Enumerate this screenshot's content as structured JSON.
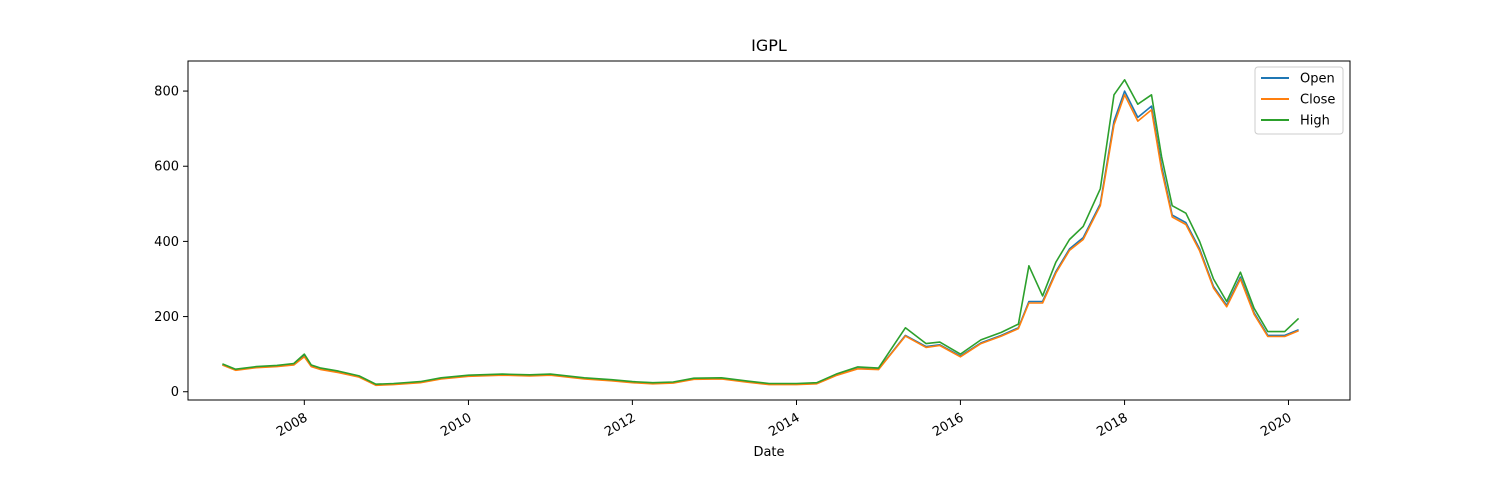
{
  "chart_data": {
    "type": "line",
    "title": "IGPL",
    "xlabel": "Date",
    "ylabel": "",
    "x_axis": {
      "type": "date",
      "range": [
        "2006-08-01",
        "2020-10-01"
      ],
      "ticks": [
        "2008-01-01",
        "2010-01-01",
        "2012-01-01",
        "2014-01-01",
        "2016-01-01",
        "2018-01-01",
        "2020-01-01"
      ],
      "tick_labels": [
        "2008",
        "2010",
        "2012",
        "2014",
        "2016",
        "2018",
        "2020"
      ]
    },
    "y_axis": {
      "range": [
        -22,
        880
      ],
      "ticks": [
        0,
        200,
        400,
        600,
        800
      ],
      "tick_labels": [
        "0",
        "200",
        "400",
        "600",
        "800"
      ]
    },
    "grid": false,
    "legend": {
      "position": "top-right"
    },
    "x": [
      "2007-01-01",
      "2007-03-01",
      "2007-06-01",
      "2007-09-01",
      "2007-11-15",
      "2008-01-01",
      "2008-02-01",
      "2008-03-15",
      "2008-06-01",
      "2008-09-01",
      "2008-11-15",
      "2009-02-01",
      "2009-06-01",
      "2009-09-01",
      "2010-01-01",
      "2010-06-01",
      "2010-10-01",
      "2011-01-01",
      "2011-06-01",
      "2011-10-01",
      "2012-01-01",
      "2012-04-01",
      "2012-07-01",
      "2012-10-01",
      "2013-02-01",
      "2013-06-01",
      "2013-09-01",
      "2014-01-01",
      "2014-04-01",
      "2014-07-01",
      "2014-10-01",
      "2015-01-01",
      "2015-05-01",
      "2015-08-01",
      "2015-10-01",
      "2016-01-01",
      "2016-04-01",
      "2016-07-01",
      "2016-09-15",
      "2016-11-01",
      "2017-01-01",
      "2017-03-01",
      "2017-05-01",
      "2017-07-01",
      "2017-09-15",
      "2017-11-15",
      "2018-01-01",
      "2018-03-01",
      "2018-05-01",
      "2018-06-15",
      "2018-08-01",
      "2018-10-01",
      "2018-12-01",
      "2019-02-01",
      "2019-04-01",
      "2019-06-01",
      "2019-08-01",
      "2019-10-01",
      "2019-12-15",
      "2020-02-15"
    ],
    "series": [
      {
        "name": "Open",
        "color": "#1f77b4",
        "values": [
          72,
          58,
          65,
          68,
          72,
          95,
          68,
          60,
          52,
          40,
          18,
          20,
          25,
          35,
          42,
          45,
          43,
          45,
          35,
          30,
          25,
          22,
          24,
          34,
          35,
          26,
          20,
          20,
          22,
          45,
          62,
          60,
          150,
          120,
          125,
          95,
          130,
          150,
          170,
          240,
          240,
          320,
          380,
          410,
          500,
          720,
          800,
          730,
          760,
          600,
          470,
          450,
          380,
          280,
          230,
          305,
          210,
          150,
          150,
          165
        ]
      },
      {
        "name": "Close",
        "color": "#ff7f0e",
        "values": [
          71,
          57,
          64,
          67,
          71,
          93,
          67,
          59,
          51,
          39,
          17,
          19,
          24,
          34,
          41,
          44,
          42,
          44,
          34,
          29,
          24,
          21,
          23,
          33,
          34,
          25,
          19,
          19,
          21,
          44,
          61,
          59,
          148,
          118,
          123,
          93,
          128,
          148,
          168,
          236,
          236,
          316,
          376,
          405,
          495,
          710,
          790,
          720,
          750,
          590,
          465,
          445,
          375,
          276,
          226,
          300,
          206,
          147,
          147,
          162
        ]
      },
      {
        "name": "High",
        "color": "#2ca02c",
        "values": [
          74,
          60,
          67,
          70,
          75,
          100,
          71,
          63,
          55,
          42,
          20,
          22,
          27,
          37,
          44,
          47,
          45,
          47,
          37,
          32,
          27,
          24,
          26,
          36,
          37,
          28,
          22,
          22,
          24,
          48,
          66,
          63,
          170,
          128,
          132,
          100,
          138,
          158,
          180,
          335,
          255,
          345,
          405,
          440,
          540,
          790,
          830,
          765,
          790,
          625,
          495,
          475,
          400,
          300,
          240,
          318,
          222,
          160,
          160,
          195
        ]
      }
    ]
  }
}
